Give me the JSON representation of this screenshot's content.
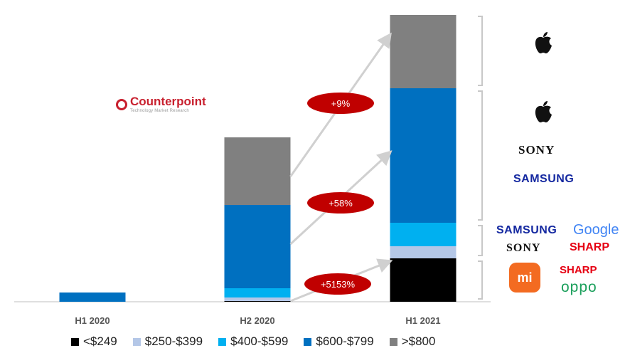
{
  "chart_data": {
    "type": "bar",
    "stacked": true,
    "categories": [
      "H1 2020",
      "H2 2020",
      "H1 2021"
    ],
    "series": [
      {
        "name": "<$249",
        "color": "#000000",
        "values": [
          0,
          0.1,
          6.1
        ]
      },
      {
        "name": "$250-$399",
        "color": "#b4c7e7",
        "values": [
          0,
          0.5,
          1.7
        ]
      },
      {
        "name": "$400-$599",
        "color": "#00b0f0",
        "values": [
          0,
          1.3,
          3.3
        ]
      },
      {
        "name": "$600-$799",
        "color": "#0070c0",
        "values": [
          1.3,
          11.7,
          18.9
        ]
      },
      {
        "name": ">$800",
        "color": "#808080",
        "values": [
          0,
          9.5,
          10.3
        ]
      }
    ],
    "ylim": [
      0,
      40.8
    ],
    "growth_labels": [
      "+9%",
      "+58%",
      "+5153%"
    ],
    "legend_position": "bottom"
  },
  "logo": {
    "name": "Counterpoint",
    "tagline": "Technology Market Research"
  },
  "brands": {
    "sony": "SONY",
    "samsung": "SAMSUNG",
    "google": "Google",
    "sharp": "SHARP",
    "mi": "mi",
    "oppo": "oppo"
  }
}
